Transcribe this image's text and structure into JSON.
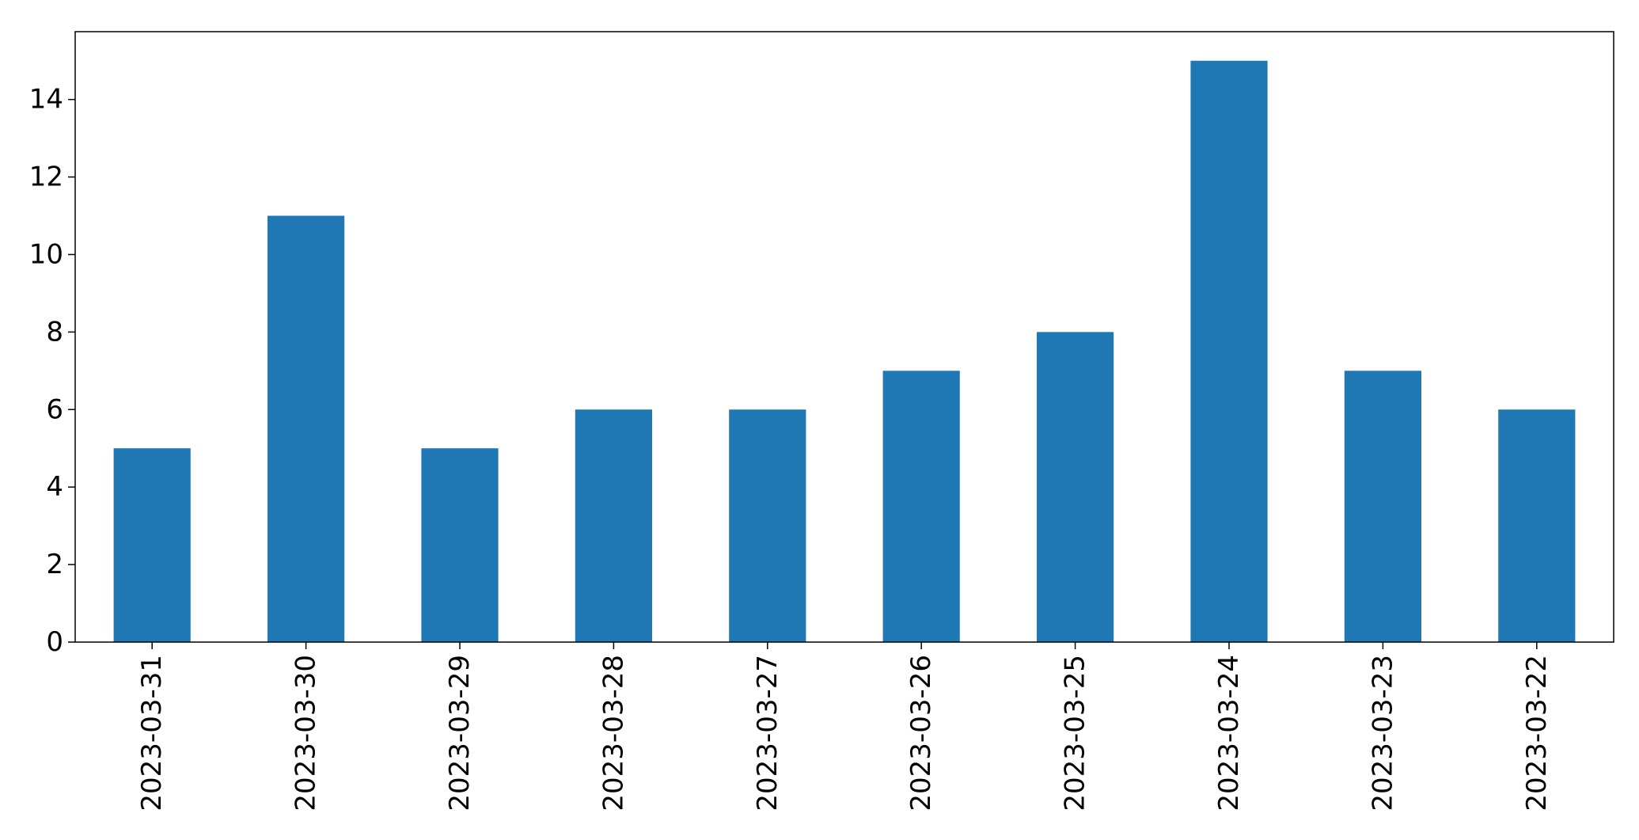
{
  "chart_data": {
    "type": "bar",
    "categories": [
      "2023-03-31",
      "2023-03-30",
      "2023-03-29",
      "2023-03-28",
      "2023-03-27",
      "2023-03-26",
      "2023-03-25",
      "2023-03-24",
      "2023-03-23",
      "2023-03-22"
    ],
    "values": [
      5,
      11,
      5,
      6,
      6,
      7,
      8,
      15,
      7,
      6
    ],
    "title": "",
    "xlabel": "",
    "ylabel": "",
    "ylim": [
      0,
      15.75
    ],
    "yticks": [
      0,
      2,
      4,
      6,
      8,
      10,
      12,
      14
    ],
    "grid": false,
    "legend": "none",
    "bar_color": "#1f77b4",
    "axis_color": "#000000"
  }
}
